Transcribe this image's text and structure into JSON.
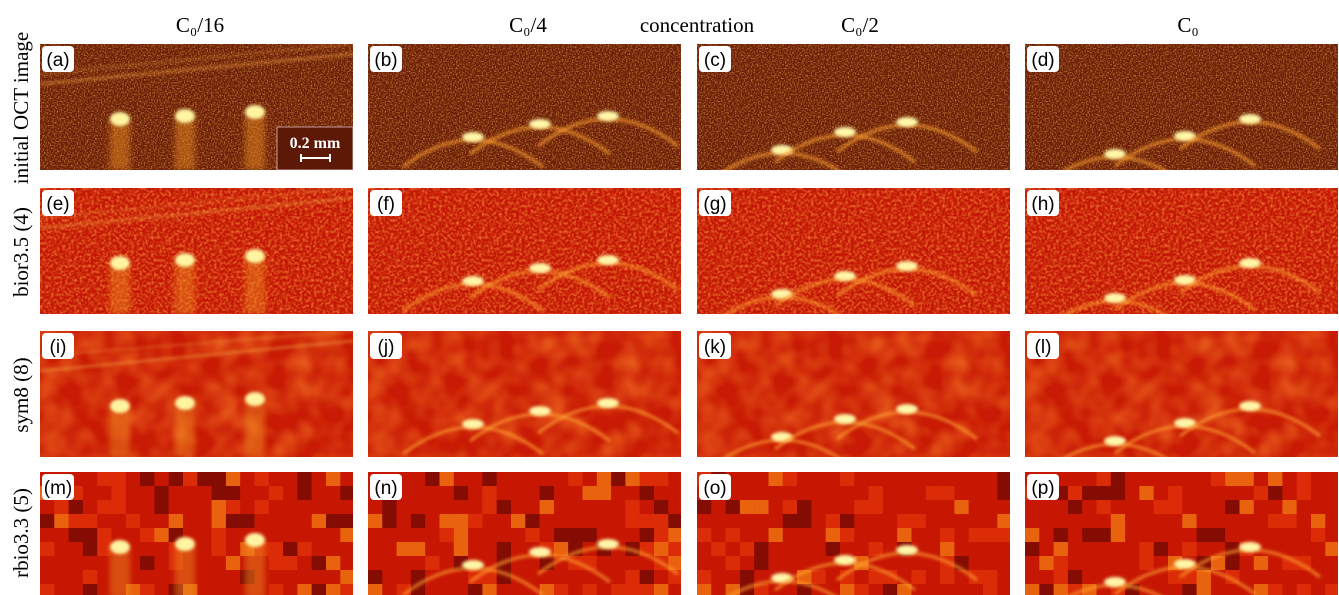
{
  "column_headers": [
    "C₀/16",
    "C₀/4",
    "C₀/2",
    "C₀"
  ],
  "axis_label": "concentration",
  "row_labels": [
    "initial OCT image",
    "bior3.5 (4)",
    "sym8 (8)",
    "rbio3.3 (5)"
  ],
  "panels": [
    [
      "(a)",
      "(b)",
      "(c)",
      "(d)"
    ],
    [
      "(e)",
      "(f)",
      "(g)",
      "(h)"
    ],
    [
      "(i)",
      "(j)",
      "(k)",
      "(l)"
    ],
    [
      "(m)",
      "(n)",
      "(o)",
      "(p)"
    ]
  ],
  "scale_bar": "0.2 mm"
}
